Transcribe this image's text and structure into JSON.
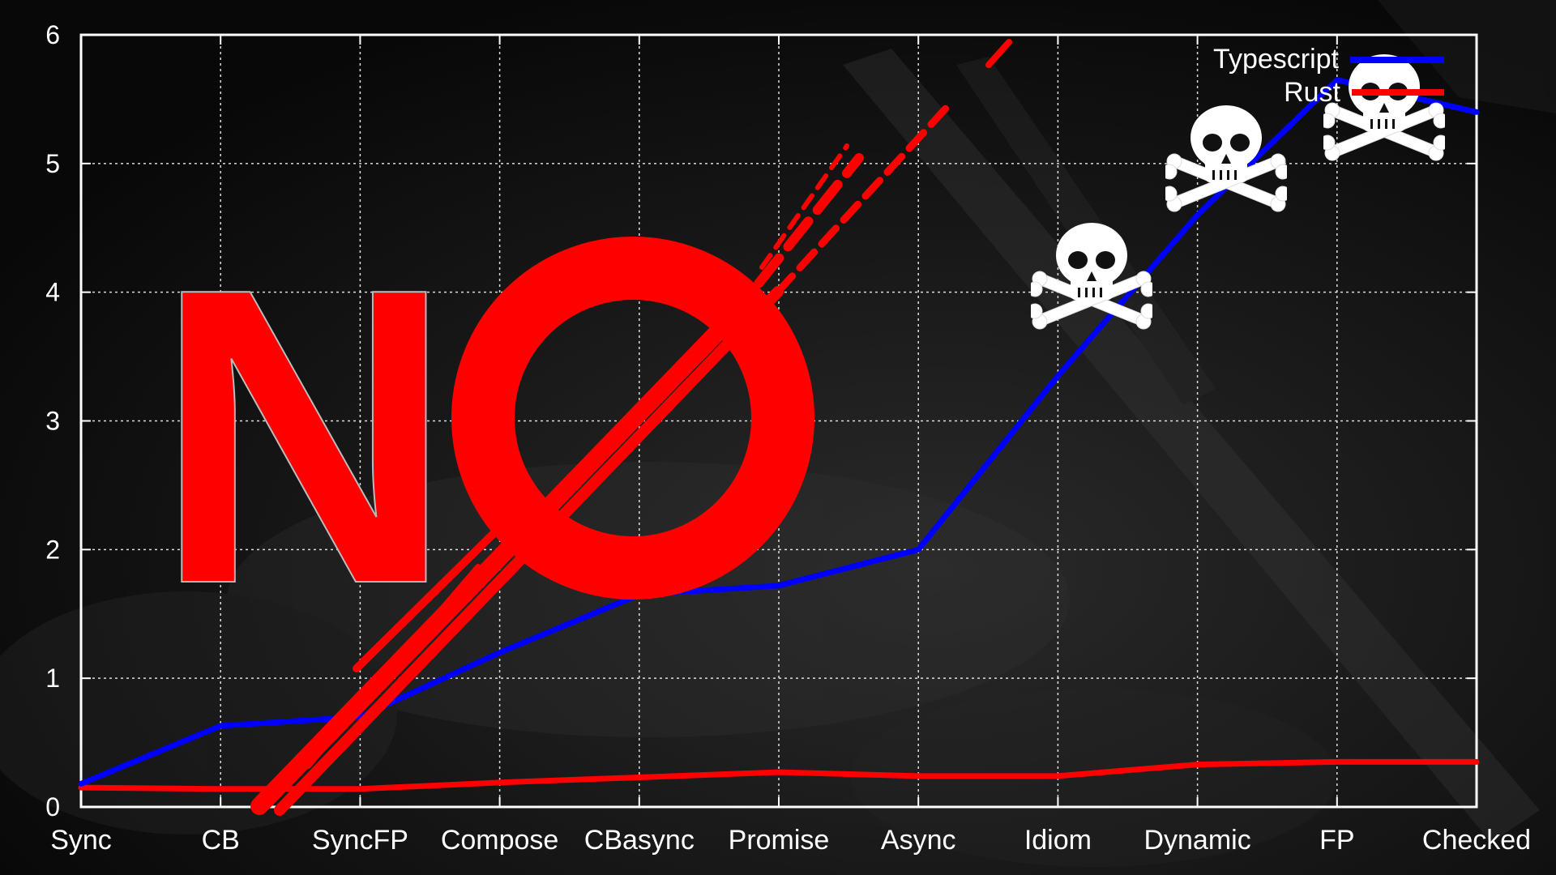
{
  "chart_data": {
    "type": "line",
    "title": "",
    "xlabel": "",
    "ylabel": "",
    "categories": [
      "Sync",
      "CB",
      "SyncFP",
      "Compose",
      "CBasync",
      "Promise",
      "Async",
      "Idiom",
      "Dynamic",
      "FP",
      "Checked"
    ],
    "ylim": [
      0,
      6
    ],
    "yticks": [
      "0",
      "1",
      "2",
      "3",
      "4",
      "5",
      "6"
    ],
    "grid": true,
    "legend_position": "top-right",
    "series": [
      {
        "name": "Typescript",
        "color": "#0000ff",
        "values": [
          0.18,
          0.63,
          0.7,
          1.2,
          1.65,
          1.72,
          2.0,
          3.35,
          4.6,
          5.65,
          5.4
        ]
      },
      {
        "name": "Rust",
        "color": "#ff0000",
        "values": [
          0.15,
          0.14,
          0.14,
          0.19,
          0.23,
          0.27,
          0.24,
          0.24,
          0.33,
          0.35,
          0.35
        ]
      }
    ]
  },
  "overlay": {
    "no_text": "NO",
    "no_color": "#ff0000",
    "skull_icon": "skull-and-crossbones-icon",
    "skull_count": 3
  }
}
